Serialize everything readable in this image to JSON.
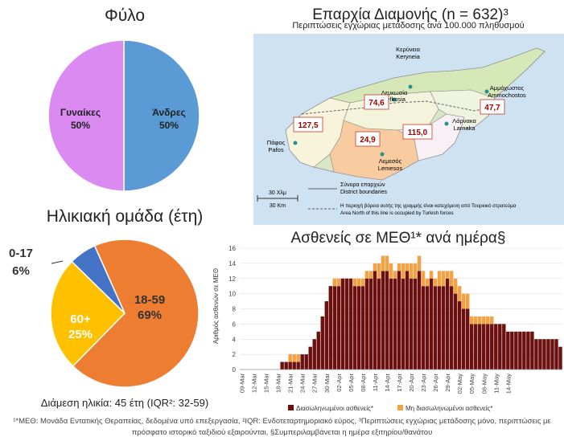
{
  "footnote": {
    "line1": "¹*ΜΕΘ: Μονάδα Εντατικής Θεραπείας, δεδομένα υπό επεξεργασία, ²IQR: Ενδοτεταρτημοριακό εύρος, ³Περιπτώσεις εγχώριας μετάδοσης μόνο, περιπτώσεις με",
    "line2": "πρόσφατο ιστορικό ταξιδιού εξαιρούνται, §Συμπεριλαμβάνεται η ημέρα εξιτηρίου/θανάτου"
  },
  "chart_data": [
    {
      "type": "pie",
      "title": "Φύλο",
      "slices": [
        {
          "label": "Άνδρες",
          "pct_label": "50%",
          "value": 50,
          "color": "#5b9bd5"
        },
        {
          "label": "Γυναίκες",
          "pct_label": "50%",
          "value": 50,
          "color": "#da8af0"
        }
      ]
    },
    {
      "type": "pie",
      "title": "Ηλικιακή ομάδα (έτη)",
      "slices": [
        {
          "label": "18-59",
          "pct_label": "69%",
          "value": 69,
          "color": "#ed7d31"
        },
        {
          "label": "60+",
          "pct_label": "25%",
          "value": 25,
          "color": "#ffc000"
        },
        {
          "label": "0-17",
          "pct_label": "6%",
          "value": 6,
          "color": "#4472c4"
        }
      ],
      "median_text": "Διάμεση ηλικία: 45 έτη (IQR²: 32-59)"
    },
    {
      "type": "map",
      "title": "Επαρχία Διαμονής (n = 632)³",
      "subtitle": "Περιπτώσεις εγχώριας μετάδοσης ανά 100.000 πληθυσμού",
      "districts": [
        {
          "name": "Λευκωσία",
          "name_en": "Lefkosia",
          "rate": "74,6",
          "color": "#ffffff"
        },
        {
          "name": "Αμμόχωστος",
          "name_en": "Ammochostos",
          "rate": "47,7",
          "color": "#ffffff"
        },
        {
          "name": "Πάφος",
          "name_en": "Pafos",
          "rate": "127,5",
          "color": "#ffffff"
        },
        {
          "name": "Λάρνακα",
          "name_en": "Larnaka",
          "rate": "115,0",
          "color": "#ffffff"
        },
        {
          "name": "Λεμεσός",
          "name_en": "Lemesos",
          "rate": "24,9",
          "color": "#f8cba0"
        },
        {
          "name": "Κερύνεια",
          "name_en": "Keryneia"
        }
      ],
      "scale_bar": {
        "gr": "30 Χλμ",
        "en": "30 Km"
      },
      "legend": [
        {
          "gr": "Σύνορα επαρχιών",
          "en": "District boundaries"
        },
        {
          "gr": "Η περιοχή βόρεια αυτής της γραμμής είναι κατεχόμενη από Τουρκικό στρατεύμα",
          "en": "Area North of this line is occupied by Turkish forces"
        }
      ]
    },
    {
      "type": "bar",
      "stacked": true,
      "title": "Ασθενείς σε ΜΕΘ¹* ανά ημέρα§",
      "ylabel": "Αριθμός ασθενών σε ΜΕΘ",
      "ylim": [
        0,
        16
      ],
      "yticks": [
        0,
        2,
        4,
        6,
        8,
        10,
        12,
        14,
        16
      ],
      "grid": true,
      "legend_position": "bottom",
      "x_start": "2020-03-09",
      "x_tick_labels": [
        "09-Mar",
        "12-Mar",
        "15-Mar",
        "18-Mar",
        "21-Mar",
        "24-Mar",
        "27-Mar",
        "30-Mar",
        "02-Apr",
        "05-Apr",
        "08-Apr",
        "11-Apr",
        "14-Apr",
        "17-Apr",
        "20-Apr",
        "23-Apr",
        "26-Apr",
        "29-Apr",
        "02-May",
        "05-May",
        "08-May",
        "11-May",
        "14-May"
      ],
      "series": [
        {
          "name": "Διασωληνωμένοι ασθενείς*",
          "color": "#6b0f0f",
          "values": [
            0,
            0,
            0,
            0,
            0,
            0,
            0,
            0,
            0,
            0,
            1,
            1,
            1,
            1,
            1,
            2,
            2,
            3,
            4,
            5,
            7,
            9,
            11,
            11,
            11,
            12,
            12,
            12,
            11,
            11,
            11,
            12,
            12,
            13,
            12,
            13,
            13,
            12,
            12,
            13,
            12,
            13,
            12,
            12,
            13,
            11,
            11,
            12,
            11,
            11,
            11,
            12,
            11,
            10,
            9,
            8,
            8,
            6,
            6,
            6,
            6,
            6,
            6,
            6,
            6,
            6,
            5,
            5,
            5,
            5,
            5,
            5,
            5,
            4,
            4,
            4,
            4,
            4,
            4,
            3
          ]
        },
        {
          "name": "Μη διασωληνωμένοι ασθενείς*",
          "color": "#f5a142",
          "values": [
            0,
            0,
            0,
            0,
            0,
            0,
            0,
            0,
            0,
            0,
            0,
            0,
            1,
            1,
            1,
            0,
            0,
            0,
            0,
            0,
            0,
            0,
            0,
            1,
            1,
            0,
            0,
            0,
            1,
            1,
            1,
            1,
            1,
            1,
            2,
            2,
            2,
            2,
            1,
            1,
            2,
            1,
            2,
            2,
            2,
            2,
            1,
            1,
            1,
            2,
            2,
            1,
            2,
            2,
            2,
            2,
            2,
            1,
            1,
            1,
            1,
            1,
            1,
            0,
            0,
            0,
            0,
            0,
            0,
            0,
            0,
            0,
            0,
            0,
            0,
            0,
            0,
            0,
            0,
            0
          ]
        }
      ]
    }
  ]
}
